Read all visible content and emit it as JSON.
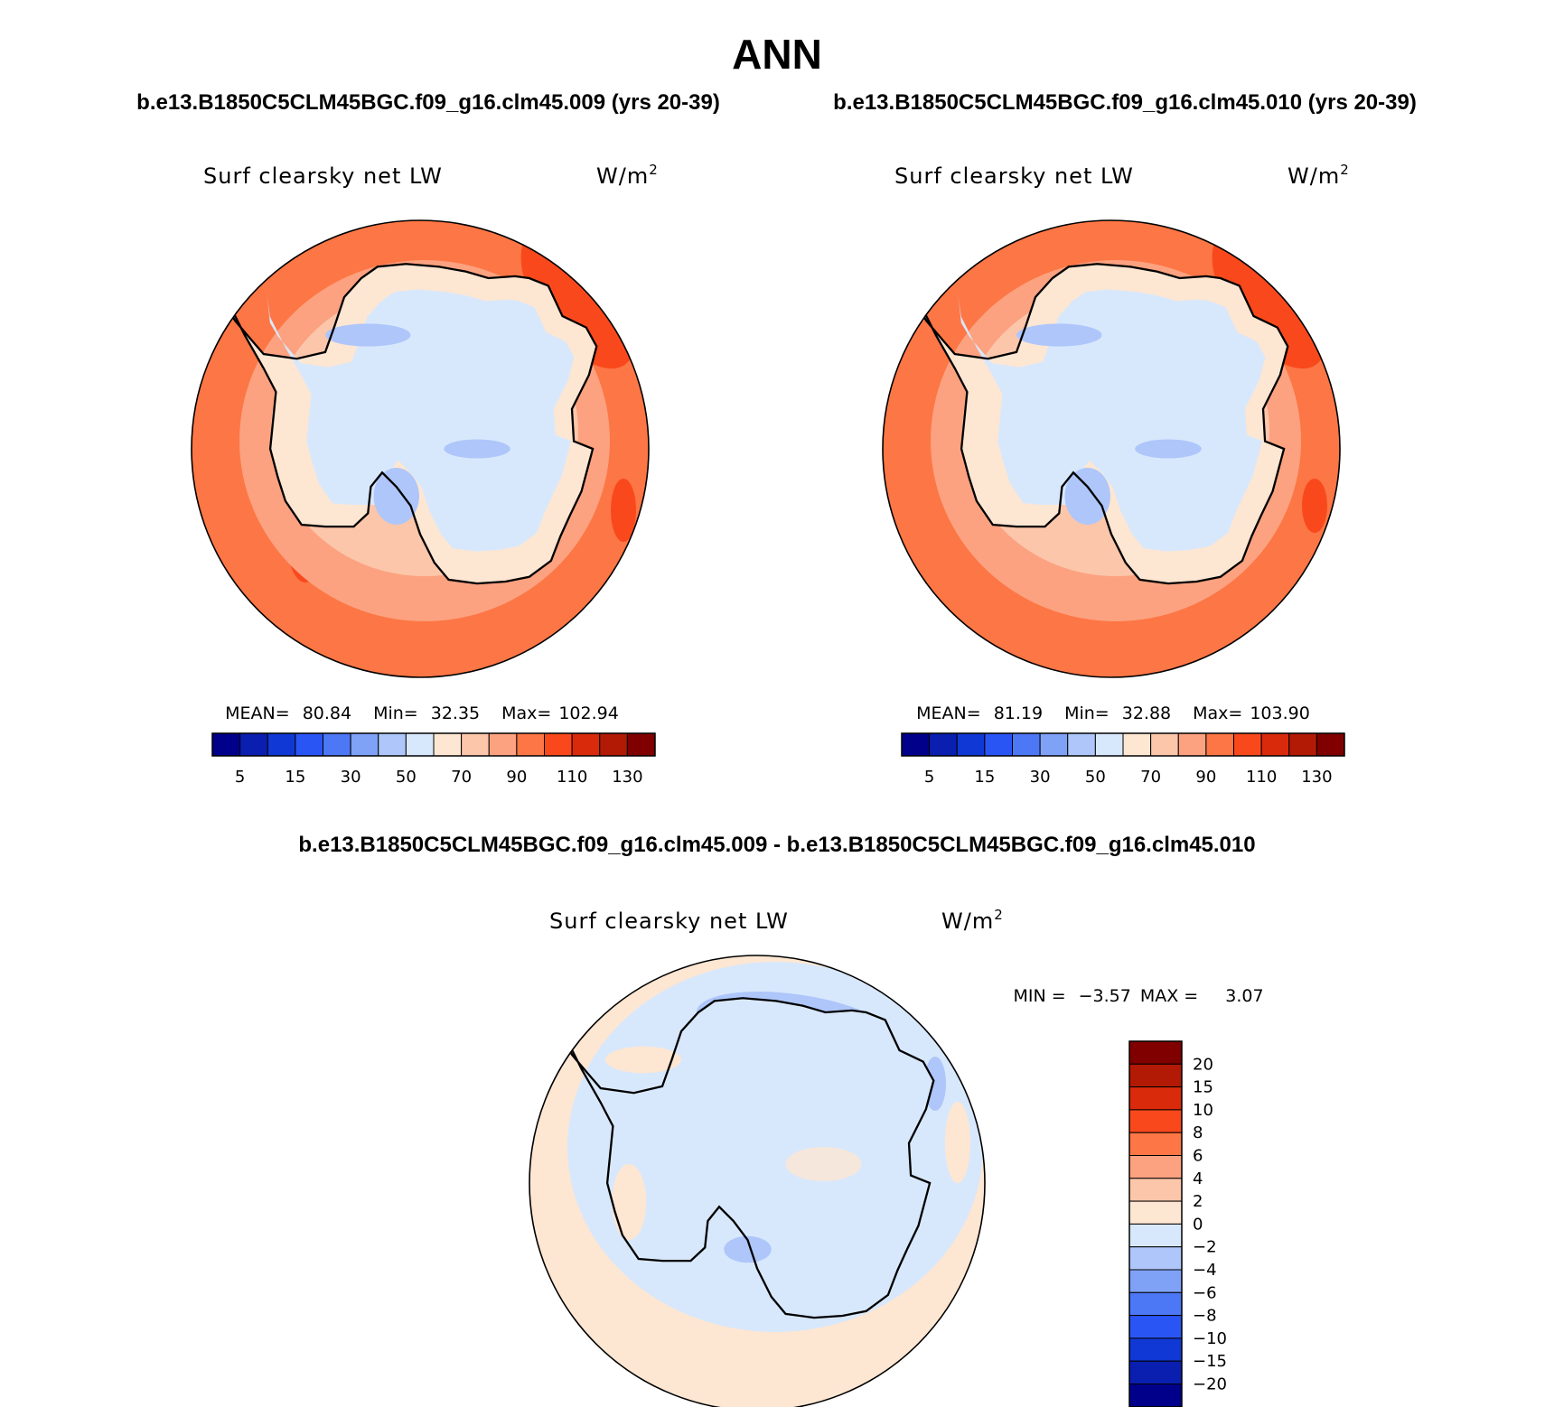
{
  "title": "ANN",
  "colors": {
    "abs_scale": [
      "#00008b",
      "#0a1fb0",
      "#1038d4",
      "#2a55f5",
      "#4d78f5",
      "#7fa2f7",
      "#aec6fa",
      "#d8e8fc",
      "#fde6d2",
      "#fcc6aa",
      "#fca280",
      "#fd7645",
      "#f9491c",
      "#d92a0c",
      "#b21a05",
      "#800000"
    ],
    "diff_scale": [
      "#00008b",
      "#0a1fb0",
      "#1038d4",
      "#2a55f5",
      "#4d78f5",
      "#7fa2f7",
      "#aec6fa",
      "#d8e8fc",
      "#fde6d2",
      "#fcc6aa",
      "#fca280",
      "#fd7645",
      "#f9491c",
      "#d92a0c",
      "#b21a05",
      "#800000"
    ],
    "land_outline": "#000000"
  },
  "chart_data": [
    {
      "type": "heatmap",
      "name": "case1",
      "case_title": "b.e13.B1850C5CLM45BGC.f09_g16.clm45.009 (yrs 20-39)",
      "variable": "Surf clearsky net LW",
      "units_base": "W/m",
      "units_sup": "2",
      "stats": {
        "mean_label": "MEAN=",
        "mean": "80.84",
        "min_label": "Min=",
        "min": "32.35",
        "max_label": "Max=",
        "max": "102.94"
      },
      "levels": [
        5,
        10,
        15,
        20,
        30,
        40,
        50,
        60,
        70,
        80,
        90,
        100,
        110,
        120,
        130
      ],
      "tick_labels": [
        "5",
        "15",
        "30",
        "50",
        "70",
        "90",
        "110",
        "130"
      ],
      "dominant_ocean_value": "90-100",
      "continent_interior_range": "50-70"
    },
    {
      "type": "heatmap",
      "name": "case2",
      "case_title": "b.e13.B1850C5CLM45BGC.f09_g16.clm45.010 (yrs 20-39)",
      "variable": "Surf clearsky net LW",
      "units_base": "W/m",
      "units_sup": "2",
      "stats": {
        "mean_label": "MEAN=",
        "mean": "81.19",
        "min_label": "Min=",
        "min": "32.88",
        "max_label": "Max=",
        "max": "103.90"
      },
      "levels": [
        5,
        10,
        15,
        20,
        30,
        40,
        50,
        60,
        70,
        80,
        90,
        100,
        110,
        120,
        130
      ],
      "tick_labels": [
        "5",
        "15",
        "30",
        "50",
        "70",
        "90",
        "110",
        "130"
      ],
      "dominant_ocean_value": "90-100",
      "continent_interior_range": "50-70"
    },
    {
      "type": "heatmap",
      "name": "difference",
      "case_title": "b.e13.B1850C5CLM45BGC.f09_g16.clm45.009 - b.e13.B1850C5CLM45BGC.f09_g16.clm45.010",
      "variable": "Surf clearsky net LW",
      "units_base": "W/m",
      "units_sup": "2",
      "stats": {
        "min_label": "MIN =",
        "min": "−3.57",
        "max_label": "MAX =",
        "max": "3.07"
      },
      "levels": [
        -20,
        -15,
        -10,
        -8,
        -6,
        -4,
        -2,
        0,
        2,
        4,
        6,
        8,
        10,
        15,
        20
      ],
      "tick_labels": [
        "20",
        "15",
        "10",
        "8",
        "6",
        "4",
        "2",
        "0",
        "−2",
        "−4",
        "−6",
        "−8",
        "−10",
        "−15",
        "−20"
      ],
      "dominant_value_range": "-2-2"
    }
  ]
}
